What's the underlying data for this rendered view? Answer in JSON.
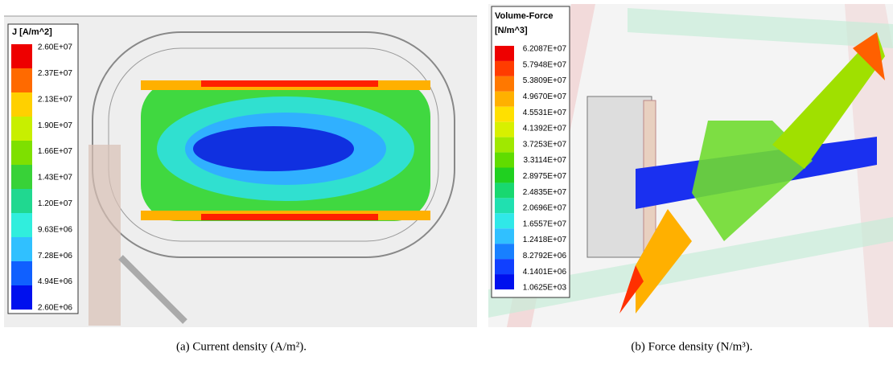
{
  "panels": [
    {
      "legend": {
        "title": "J [A/m^2]",
        "labels": [
          "2.60E+07",
          "2.37E+07",
          "2.13E+07",
          "1.90E+07",
          "1.66E+07",
          "1.43E+07",
          "1.20E+07",
          "9.63E+06",
          "7.28E+06",
          "4.94E+06",
          "2.60E+06"
        ],
        "colors": [
          "#ee0000",
          "#ff6a00",
          "#ffd000",
          "#c8ef00",
          "#7ee000",
          "#38d238",
          "#20d890",
          "#30eedd",
          "#30c0ff",
          "#1060ff",
          "#0010ee"
        ]
      },
      "caption": "(a) Current density (A/m²)."
    },
    {
      "legend": {
        "title": "Volume-Force",
        "subtitle": "[N/m^3]",
        "labels": [
          "6.2087E+07",
          "5.7948E+07",
          "5.3809E+07",
          "4.9670E+07",
          "4.5531E+07",
          "4.1392E+07",
          "3.7253E+07",
          "3.3114E+07",
          "2.8975E+07",
          "2.4835E+07",
          "2.0696E+07",
          "1.6557E+07",
          "1.2418E+07",
          "8.2792E+06",
          "4.1401E+06",
          "1.0625E+03"
        ],
        "colors": [
          "#ee0000",
          "#ff3c00",
          "#ff7800",
          "#ffb000",
          "#ffe000",
          "#d8f000",
          "#a0e800",
          "#60dc00",
          "#20d020",
          "#18d870",
          "#20e0b0",
          "#30e8e8",
          "#30c0ff",
          "#1880ff",
          "#1040ff",
          "#0010ee"
        ]
      },
      "caption": "(b) Force density (N/m³)."
    }
  ]
}
